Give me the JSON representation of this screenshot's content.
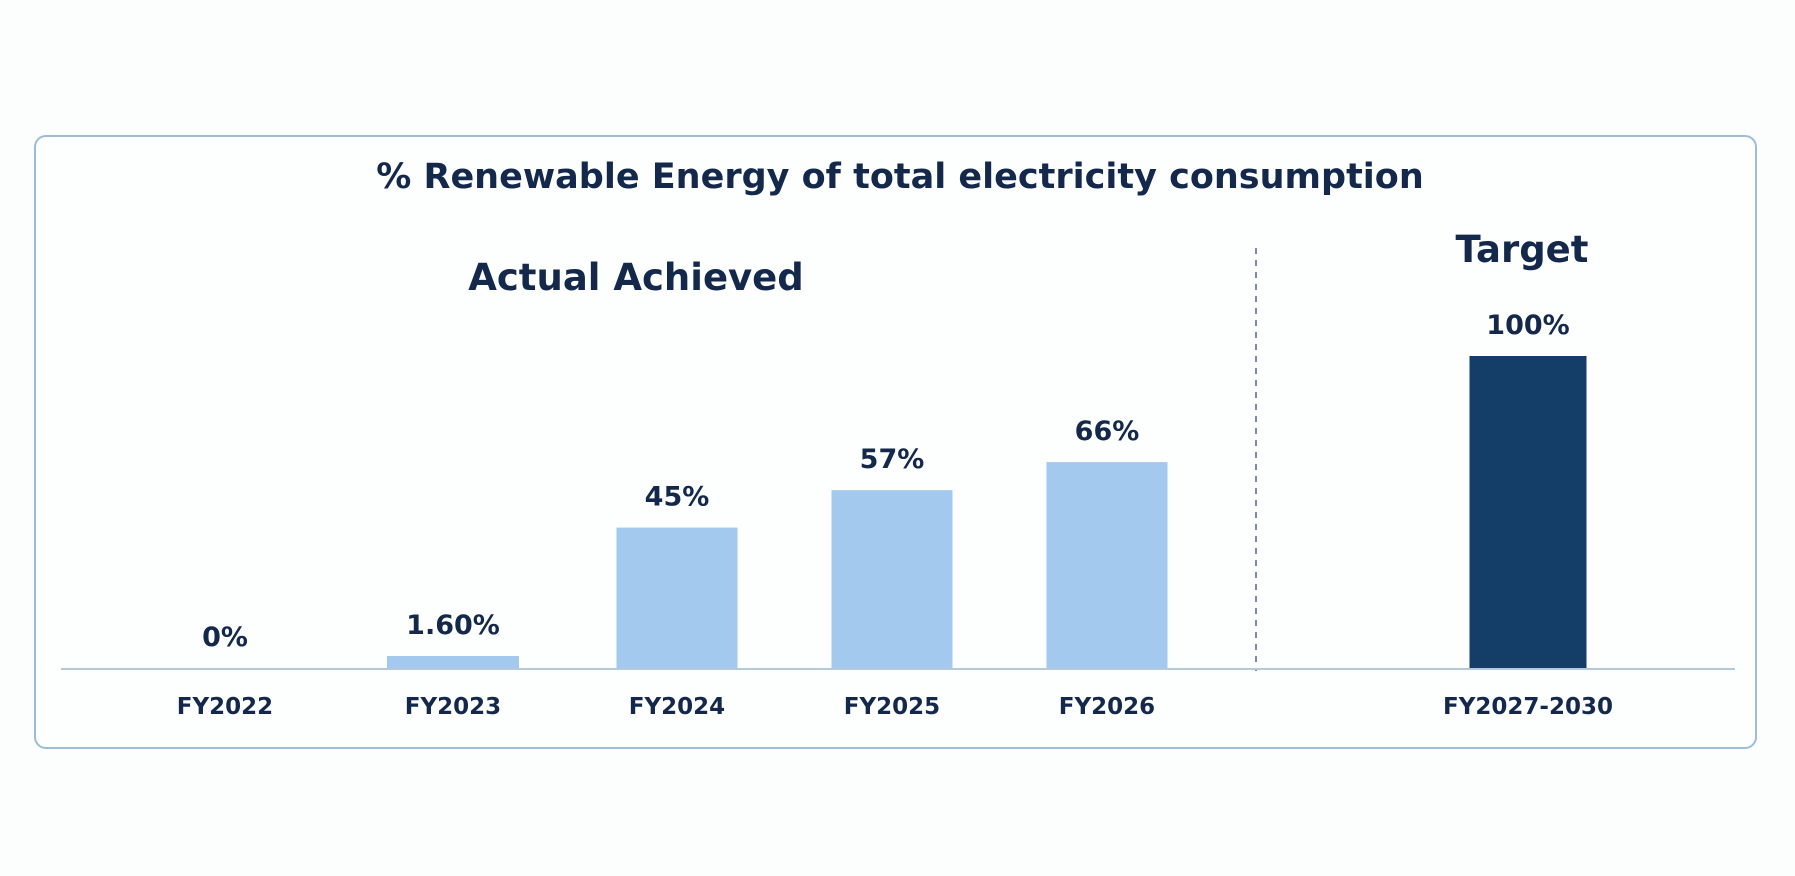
{
  "chart_data": {
    "type": "bar",
    "title": "% Renewable Energy of total electricity consumption",
    "groups": [
      {
        "label": "Actual Achieved",
        "color": "#a3c9ee",
        "categories": [
          "FY2022",
          "FY2023",
          "FY2024",
          "FY2025",
          "FY2026"
        ],
        "values": [
          0,
          1.6,
          45,
          57,
          66
        ],
        "value_labels": [
          "0%",
          "1.60%",
          "45%",
          "57%",
          "66%"
        ]
      },
      {
        "label": "Target",
        "color": "#143e67",
        "categories": [
          "FY2027-2030"
        ],
        "values": [
          100
        ],
        "value_labels": [
          "100%"
        ]
      }
    ],
    "ylim": [
      0,
      100
    ],
    "grid": false,
    "legend": "none",
    "separator": "dashed line between actual and target"
  }
}
